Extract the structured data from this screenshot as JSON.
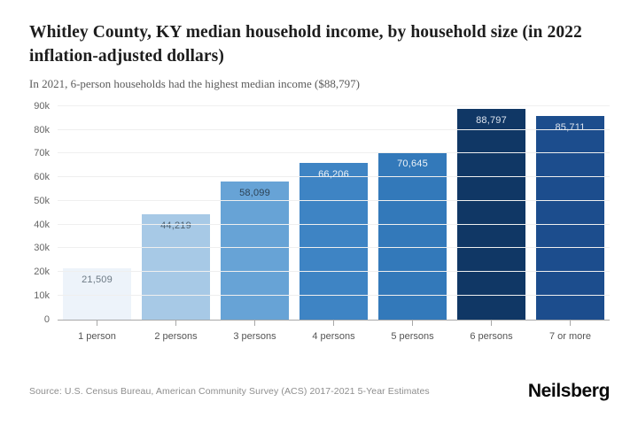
{
  "header": {
    "title": "Whitley County, KY median household income, by household size (in 2022 inflation-adjusted dollars)",
    "subtitle": "In 2021, 6-person households had the highest median income ($88,797)"
  },
  "chart_data": {
    "type": "bar",
    "title": "Whitley County, KY median household income, by household size (in 2022 inflation-adjusted dollars)",
    "xlabel": "",
    "ylabel": "",
    "categories": [
      "1 person",
      "2 persons",
      "3 persons",
      "4 persons",
      "5 persons",
      "6 persons",
      "7 or more"
    ],
    "values": [
      21509,
      44219,
      58099,
      66206,
      70645,
      88797,
      85711
    ],
    "value_labels": [
      "21,509",
      "44,219",
      "58,099",
      "66,206",
      "70,645",
      "88,797",
      "85,711"
    ],
    "bar_colors": [
      "#edf3fa",
      "#a7c9e6",
      "#67a3d6",
      "#3e84c4",
      "#3379ba",
      "#103765",
      "#1c4d8d"
    ],
    "value_label_colors": [
      "#6d7a85",
      "#4f6373",
      "#2c4255",
      "#eef4f9",
      "#eef4f9",
      "#dde4ee",
      "#dde4ee"
    ],
    "ylim": [
      0,
      90000
    ],
    "yticks": [
      0,
      10000,
      20000,
      30000,
      40000,
      50000,
      60000,
      70000,
      80000,
      90000
    ],
    "ytick_labels": [
      "0",
      "10k",
      "20k",
      "30k",
      "40k",
      "50k",
      "60k",
      "70k",
      "80k",
      "90k"
    ],
    "grid": "horizontal",
    "legend": "none"
  },
  "footer": {
    "source": "Source: U.S. Census Bureau, American Community Survey (ACS) 2017-2021 5-Year Estimates",
    "brand": "Neilsberg"
  }
}
